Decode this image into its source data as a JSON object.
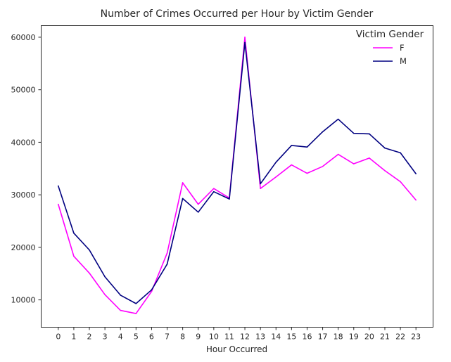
{
  "chart_data": {
    "type": "line",
    "title": "Number of Crimes Occurred per Hour by Victim Gender",
    "xlabel": "Hour Occurred",
    "ylabel": "",
    "x": [
      0,
      1,
      2,
      3,
      4,
      5,
      6,
      7,
      8,
      9,
      10,
      11,
      12,
      13,
      14,
      15,
      16,
      17,
      18,
      19,
      20,
      21,
      22,
      23
    ],
    "x_tick_labels": [
      "0",
      "1",
      "2",
      "3",
      "4",
      "5",
      "6",
      "7",
      "8",
      "9",
      "10",
      "11",
      "12",
      "13",
      "14",
      "15",
      "16",
      "17",
      "18",
      "19",
      "20",
      "21",
      "22",
      "23"
    ],
    "y_ticks": [
      10000,
      20000,
      30000,
      40000,
      50000,
      60000
    ],
    "y_tick_labels": [
      "10000",
      "20000",
      "30000",
      "40000",
      "50000",
      "60000"
    ],
    "xlim": [
      -1.1,
      24.1
    ],
    "ylim": [
      4800,
      62200
    ],
    "grid": false,
    "legend": {
      "title": "Victim Gender",
      "placement": "top-right"
    },
    "series": [
      {
        "name": "F",
        "color": "#ff00ff",
        "values": [
          28200,
          18300,
          15100,
          11000,
          8000,
          7400,
          11600,
          18900,
          32300,
          28200,
          31200,
          29400,
          60000,
          31200,
          33400,
          35700,
          34100,
          35400,
          37700,
          35900,
          37000,
          34600,
          32500,
          29000
        ]
      },
      {
        "name": "M",
        "color": "#000080",
        "values": [
          31700,
          22700,
          19500,
          14400,
          10900,
          9300,
          11900,
          16800,
          29300,
          26700,
          30600,
          29200,
          59000,
          32100,
          36200,
          39400,
          39100,
          42000,
          44400,
          41700,
          41600,
          38900,
          38000,
          34000
        ]
      }
    ]
  }
}
